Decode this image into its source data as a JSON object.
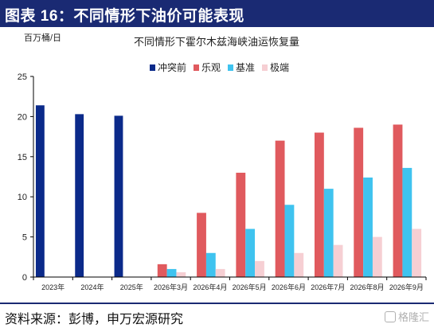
{
  "figure": {
    "title": "图表 16：不同情形下油价可能表现",
    "source": "资料来源：彭博，申万宏源研究",
    "watermark": "格隆汇"
  },
  "colors": {
    "header_bg": "#1a2a73",
    "axis": "#000000"
  },
  "chart_data": {
    "type": "bar",
    "title": "不同情形下霍尔木兹海峡油运恢复量",
    "ylabel": "百万桶/日",
    "xlabel": "",
    "ylim": [
      0,
      25
    ],
    "yticks": [
      0,
      5,
      10,
      15,
      20,
      25
    ],
    "grid": false,
    "legend_position": "top-right",
    "categories": [
      "2023年",
      "2024年",
      "2025年",
      "2026年3月",
      "2026年4月",
      "2026年5月",
      "2026年6月",
      "2026年7月",
      "2026年8月",
      "2026年9月"
    ],
    "series": [
      {
        "name": "冲突前",
        "color": "#0b2a8a",
        "values": [
          21.4,
          20.3,
          20.1,
          null,
          null,
          null,
          null,
          null,
          null,
          null
        ]
      },
      {
        "name": "乐观",
        "color": "#e05a5e",
        "values": [
          null,
          null,
          null,
          1.6,
          8.0,
          13.0,
          17.0,
          18.0,
          18.6,
          19.0
        ]
      },
      {
        "name": "基准",
        "color": "#3fc3ef",
        "values": [
          null,
          null,
          null,
          1.0,
          3.0,
          6.0,
          9.0,
          11.0,
          12.4,
          13.6
        ]
      },
      {
        "name": "极端",
        "color": "#f6cfd3",
        "values": [
          null,
          null,
          null,
          0.6,
          1.0,
          2.0,
          3.0,
          4.0,
          5.0,
          6.0
        ]
      }
    ]
  }
}
